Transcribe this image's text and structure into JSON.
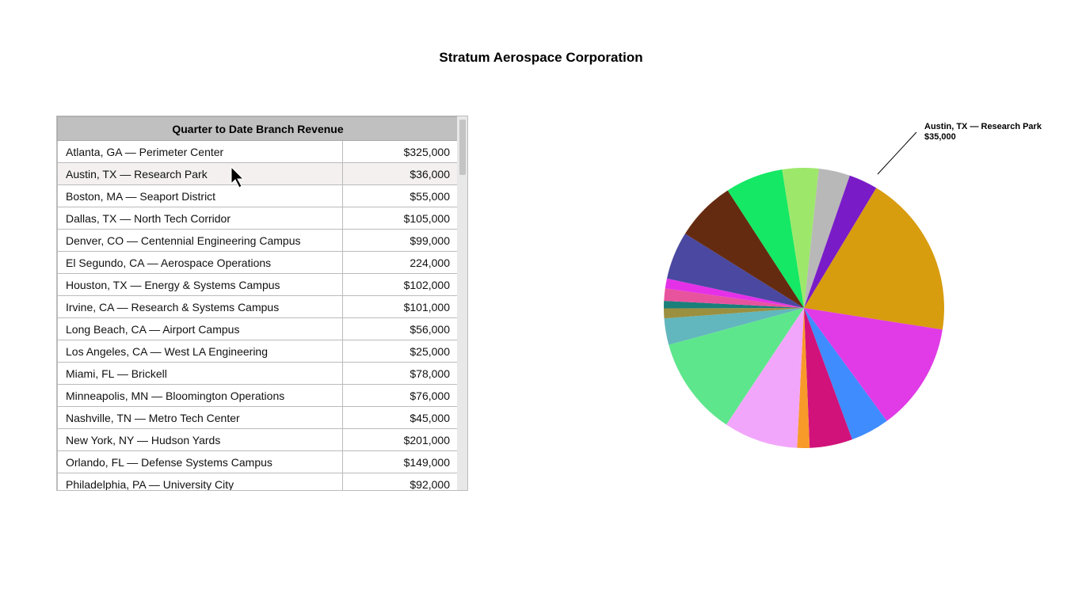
{
  "header": {
    "title": "Stratum Aerospace Corporation"
  },
  "table": {
    "title": "Quarter to Date Branch Revenue",
    "rows": [
      [
        "Atlanta, GA — Perimeter Center",
        "$325,000"
      ],
      [
        "Austin, TX — Research Park",
        "$36,000"
      ],
      [
        "Boston, MA — Seaport District",
        "$55,000"
      ],
      [
        "Dallas, TX — North Tech Corridor",
        "$105,000"
      ],
      [
        "Denver, CO — Centennial Engineering Campus",
        "$99,000"
      ],
      [
        "El Segundo, CA — Aerospace Operations",
        "224,000"
      ],
      [
        "Houston, TX — Energy & Systems Campus",
        "$102,000"
      ],
      [
        "Irvine, CA — Research & Systems Campus",
        "$101,000"
      ],
      [
        "Long Beach, CA — Airport Campus",
        "$56,000"
      ],
      [
        "Los Angeles, CA — West LA Engineering",
        "$25,000"
      ],
      [
        "Miami, FL — Brickell",
        "$78,000"
      ],
      [
        "Minneapolis, MN — Bloomington Operations",
        "$76,000"
      ],
      [
        "Nashville, TN — Metro Tech Center",
        "$45,000"
      ],
      [
        "New York, NY — Hudson Yards",
        "$201,000"
      ],
      [
        "Orlando, FL — Defense Systems Campus",
        "$149,000"
      ],
      [
        "Philadelphia, PA — University City",
        "$92,000"
      ]
    ]
  },
  "chart_data": {
    "type": "pie",
    "categories": [
      null,
      null,
      "Austin, TX — Research Park",
      null,
      null,
      null,
      null,
      null,
      null,
      null,
      null,
      null,
      null,
      null,
      null,
      null,
      null,
      null
    ],
    "values": [
      44000,
      38000,
      35000,
      198000,
      131000,
      47000,
      52000,
      15000,
      90000,
      120000,
      32000,
      12000,
      9000,
      15000,
      12000,
      58000,
      73000,
      70000
    ],
    "value_labels": [
      null,
      null,
      "$35,000",
      null,
      null,
      null,
      null,
      null,
      null,
      null,
      null,
      null,
      null,
      null,
      null,
      null,
      null,
      null
    ],
    "colors": [
      "#9de86a",
      "#b8b8b8",
      "#7a1bc8",
      "#d89c0f",
      "#e03be6",
      "#3f8cff",
      "#d1127a",
      "#f79a2a",
      "#f2a6fb",
      "#5ee68c",
      "#62b6bd",
      "#9a9040",
      "#1a7f7a",
      "#e8539e",
      "#e431e8",
      "#4a48a0",
      "#652b10",
      "#14e864"
    ]
  }
}
